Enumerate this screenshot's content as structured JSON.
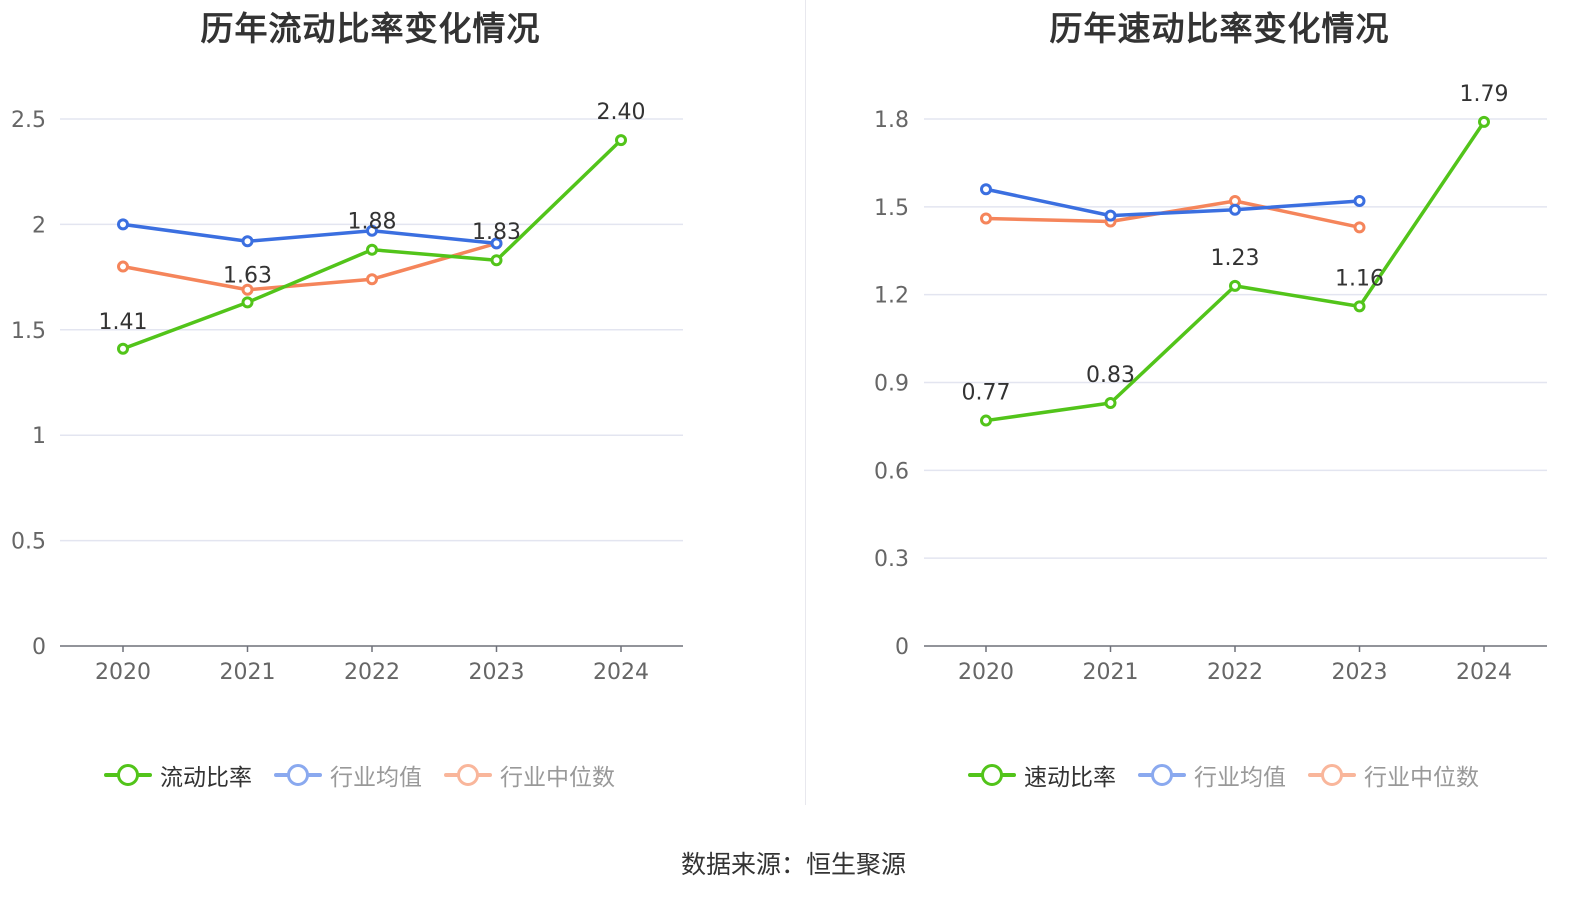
{
  "source": "数据来源：恒生聚源",
  "chart_data": [
    {
      "type": "line",
      "title": "历年流动比率变化情况",
      "categories": [
        "2020",
        "2021",
        "2022",
        "2023",
        "2024"
      ],
      "ylim": [
        0,
        2.5
      ],
      "yticks": [
        0,
        0.5,
        1,
        1.5,
        2,
        2.5
      ],
      "ytick_labels": [
        "0",
        "0.5",
        "1",
        "1.5",
        "2",
        "2.5"
      ],
      "grid": true,
      "legend_position": "bottom",
      "series": [
        {
          "name": "流动比率",
          "color": "#52c41a",
          "values": [
            1.41,
            1.63,
            1.88,
            1.83,
            2.4
          ],
          "labels": [
            "1.41",
            "1.63",
            "1.88",
            "1.83",
            "2.40"
          ]
        },
        {
          "name": "行业均值",
          "color": "#3b6fe0",
          "values": [
            2.0,
            1.92,
            1.97,
            1.91,
            null
          ]
        },
        {
          "name": "行业中位数",
          "color": "#f5855b",
          "values": [
            1.8,
            1.69,
            1.74,
            1.91,
            null
          ]
        }
      ]
    },
    {
      "type": "line",
      "title": "历年速动比率变化情况",
      "categories": [
        "2020",
        "2021",
        "2022",
        "2023",
        "2024"
      ],
      "ylim": [
        0,
        1.8
      ],
      "yticks": [
        0,
        0.3,
        0.6,
        0.9,
        1.2,
        1.5,
        1.8
      ],
      "ytick_labels": [
        "0",
        "0.3",
        "0.6",
        "0.9",
        "1.2",
        "1.5",
        "1.8"
      ],
      "grid": true,
      "legend_position": "bottom",
      "series": [
        {
          "name": "速动比率",
          "color": "#52c41a",
          "values": [
            0.77,
            0.83,
            1.23,
            1.16,
            1.79
          ],
          "labels": [
            "0.77",
            "0.83",
            "1.23",
            "1.16",
            "1.79"
          ]
        },
        {
          "name": "行业均值",
          "color": "#3b6fe0",
          "values": [
            1.56,
            1.47,
            1.49,
            1.52,
            null
          ]
        },
        {
          "name": "行业中位数",
          "color": "#f5855b",
          "values": [
            1.46,
            1.45,
            1.52,
            1.43,
            null
          ]
        }
      ]
    }
  ]
}
